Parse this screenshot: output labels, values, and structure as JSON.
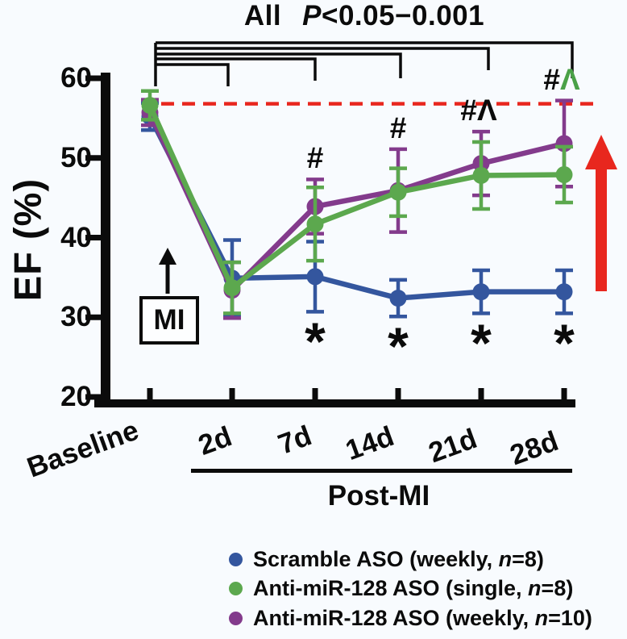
{
  "figure": {
    "title": {
      "all": "All",
      "p": "P",
      "range": "<0.05−0.001"
    },
    "y_axis": {
      "label": "EF (%)",
      "ticks": [
        60,
        50,
        40,
        30,
        20
      ]
    },
    "x_axis": {
      "group_label": "Post-MI"
    },
    "mi_annotation": {
      "label": "MI",
      "arrow": "up"
    },
    "legend": [
      {
        "series": "scramble-aso-weekly",
        "color": "#34569E",
        "prefix": "Scramble ASO (weekly, ",
        "n_symbol": "n",
        "suffix": "=8)"
      },
      {
        "series": "anti-mir-128-aso-single",
        "color": "#5CA84E",
        "prefix": "Anti-miR-128 ASO (single, ",
        "n_symbol": "n",
        "suffix": "=8)"
      },
      {
        "series": "anti-mir-128-aso-weekly",
        "color": "#833B8C",
        "prefix": "Anti-miR-128 ASO (weekly, ",
        "n_symbol": "n",
        "suffix": "=10)"
      }
    ]
  },
  "chart_data": {
    "type": "line",
    "title": "All P<0.05−0.001",
    "xlabel": "Post-MI",
    "ylabel": "EF (%)",
    "ylim": [
      20,
      60
    ],
    "grid": false,
    "legend_position": "bottom",
    "categories": [
      "Baseline",
      "2d",
      "7d",
      "14d",
      "21d",
      "28d"
    ],
    "series": [
      {
        "name": "Scramble ASO (weekly, n=8)",
        "color": "#34569E",
        "values": [
          55.2,
          34.9,
          35.1,
          32.4,
          33.2,
          33.2
        ],
        "errors": [
          1.7,
          4.8,
          4.4,
          2.3,
          2.7,
          2.7
        ]
      },
      {
        "name": "Anti-miR-128 ASO (single, n=8)",
        "color": "#5CA84E",
        "values": [
          56.6,
          33.7,
          41.7,
          45.7,
          47.8,
          47.9
        ],
        "errors": [
          1.8,
          3.2,
          4.6,
          3.0,
          4.2,
          3.5
        ]
      },
      {
        "name": "Anti-miR-128 ASO (weekly, n=10)",
        "color": "#833B8C",
        "values": [
          55.7,
          33.4,
          43.9,
          45.9,
          49.3,
          51.8
        ],
        "errors": [
          1.6,
          3.5,
          3.4,
          5.2,
          4.0,
          5.4
        ]
      }
    ],
    "reference_line": {
      "value": 56.8,
      "color": "#E8271E",
      "style": "dashed"
    },
    "trend_arrow": {
      "direction": "up",
      "color": "#E8271E"
    },
    "significance": {
      "bracket_note": "All P<0.05−0.001",
      "brackets_from": "Baseline",
      "brackets_to": [
        "28d",
        "21d",
        "14d",
        "7d",
        "2d"
      ],
      "hash_markers": [
        {
          "category": "7d",
          "text": "#"
        },
        {
          "category": "14d",
          "text": "#"
        },
        {
          "category": "21d",
          "text": "#^"
        },
        {
          "category": "28d",
          "text": "#^",
          "caret_color": "#4aa147"
        }
      ],
      "star_markers": [
        {
          "category": "7d",
          "text": "*"
        },
        {
          "category": "14d",
          "text": "*"
        },
        {
          "category": "21d",
          "text": "*"
        },
        {
          "category": "28d",
          "text": "*"
        }
      ]
    }
  }
}
